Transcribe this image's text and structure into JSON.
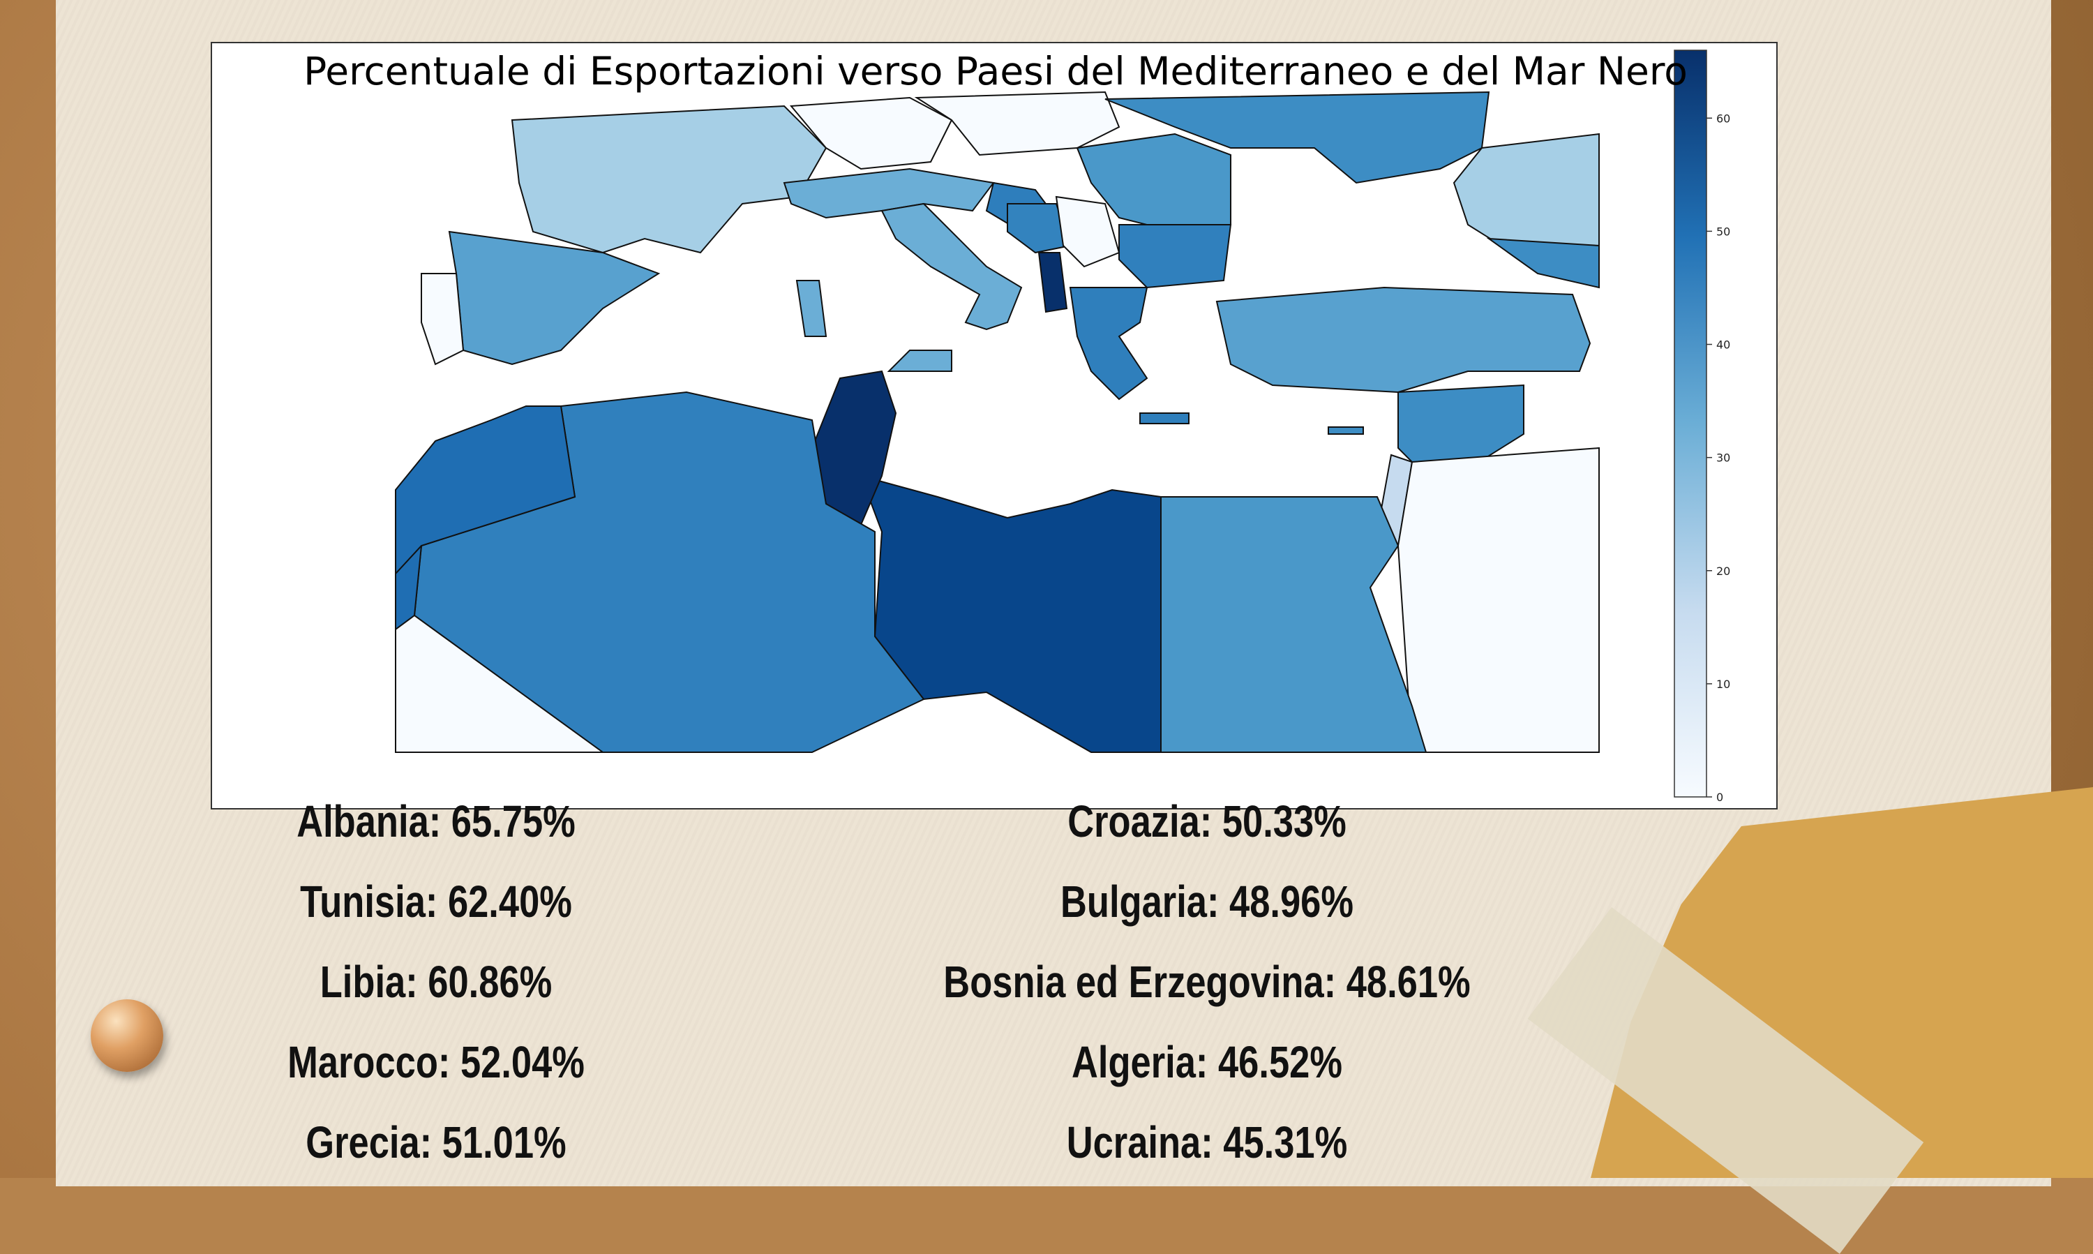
{
  "map": {
    "title": "Percentuale di Esportazioni verso Paesi del Mediterraneo e del Mar Nero",
    "colorbar": {
      "ticks": [
        "0",
        "10",
        "20",
        "30",
        "40",
        "50",
        "60"
      ],
      "range": [
        0,
        66
      ],
      "colormap": "Blues"
    },
    "colors": {
      "land_low": "#f7fbff",
      "land_high": "#08306b",
      "sea": "#ffffff"
    }
  },
  "stats": {
    "left": [
      {
        "label": "Albania: 65.75%"
      },
      {
        "label": "Tunisia: 62.40%"
      },
      {
        "label": "Libia: 60.86%"
      },
      {
        "label": "Marocco: 52.04%"
      },
      {
        "label": "Grecia: 51.01%"
      }
    ],
    "right": [
      {
        "label": "Croazia: 50.33%"
      },
      {
        "label": "Bulgaria: 48.96%"
      },
      {
        "label": "Bosnia ed Erzegovina: 48.61%"
      },
      {
        "label": "Algeria: 46.52%"
      },
      {
        "label": "Ucraina: 45.31%"
      }
    ]
  }
}
